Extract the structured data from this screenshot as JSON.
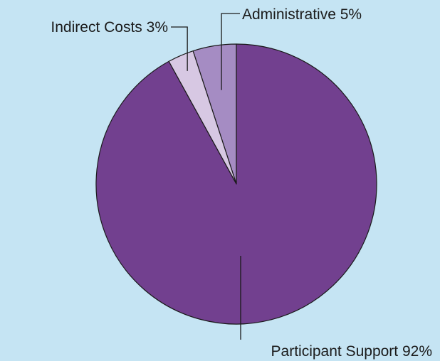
{
  "chart_data": {
    "type": "pie",
    "title": "",
    "slices": [
      {
        "label": "Administrative 5%",
        "value": 5,
        "color": "#a58cc3"
      },
      {
        "label": "Indirect Costs 3%",
        "value": 3,
        "color": "#d7c8e3"
      },
      {
        "label": "Participant Support 92%",
        "value": 92,
        "color": "#72408f"
      }
    ],
    "start": "12 o'clock",
    "direction": "counterclockwise",
    "legend": "none (direct labels with leader lines)",
    "background_color": "#c5e4f3"
  }
}
